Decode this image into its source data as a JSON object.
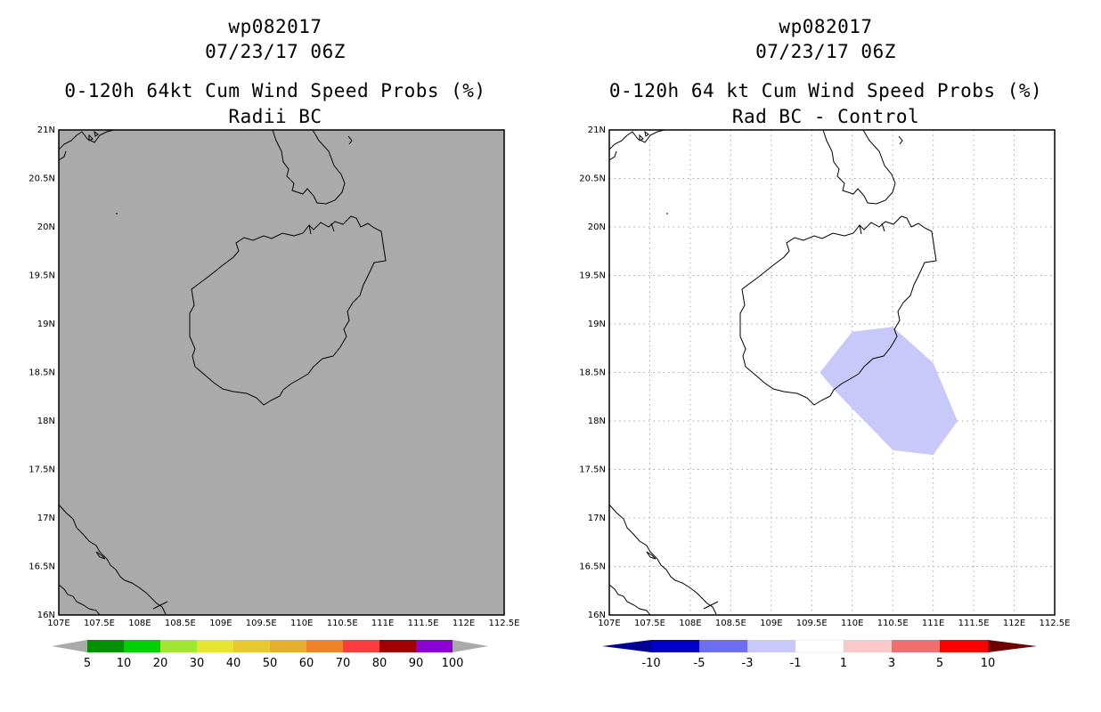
{
  "panels": [
    {
      "title_storm": "wp082017",
      "title_date": "07/23/17 06Z",
      "title_product": "0-120h 64kt Cum Wind Speed Probs (%)",
      "title_subtitle": "Radii BC",
      "background_color": "#aaaaaa",
      "grid": false
    },
    {
      "title_storm": "wp082017",
      "title_date": "07/23/17 06Z",
      "title_product": "0-120h 64 kt Cum Wind Speed Probs (%)",
      "title_subtitle": "Rad BC - Control",
      "background_color": "#ffffff",
      "grid": true
    }
  ],
  "axes": {
    "lon_ticks": [
      "107E",
      "107.5E",
      "108E",
      "108.5E",
      "109E",
      "109.5E",
      "110E",
      "110.5E",
      "111E",
      "111.5E",
      "112E",
      "112.5E"
    ],
    "lat_ticks": [
      "16N",
      "16.5N",
      "17N",
      "17.5N",
      "18N",
      "18.5N",
      "19N",
      "19.5N",
      "20N",
      "20.5N",
      "21N"
    ],
    "lon_range": [
      107,
      112.5
    ],
    "lat_range": [
      16,
      21
    ]
  },
  "shaded_region": {
    "panel": "Rad BC - Control",
    "category": "-3 to -1",
    "color": "#c8c8fa",
    "lon_lat_points": [
      [
        109.6,
        18.5
      ],
      [
        110.0,
        18.92
      ],
      [
        110.5,
        18.97
      ],
      [
        111.0,
        18.6
      ],
      [
        111.3,
        18.0
      ],
      [
        111.0,
        17.65
      ],
      [
        110.5,
        17.7
      ],
      [
        109.8,
        18.3
      ]
    ]
  },
  "colorbars": {
    "probability": {
      "labels": [
        "5",
        "10",
        "20",
        "30",
        "40",
        "50",
        "60",
        "70",
        "80",
        "90",
        "100"
      ],
      "colors": [
        "#009100",
        "#00d200",
        "#a0e632",
        "#e6e632",
        "#e6c832",
        "#e6af2d",
        "#f08228",
        "#fa3c3c",
        "#a00000",
        "#8c00d2"
      ],
      "end_color": "#aaaaaa"
    },
    "difference": {
      "labels": [
        "-10",
        "-5",
        "-3",
        "-1",
        "1",
        "3",
        "5",
        "10"
      ],
      "colors": [
        "#0000c8",
        "#6e6ef0",
        "#c8c8fa",
        "#ffffff",
        "#fac8c8",
        "#f06e6e",
        "#ff0000"
      ],
      "low_end_color": "#000096",
      "high_end_color": "#6e0000"
    }
  }
}
